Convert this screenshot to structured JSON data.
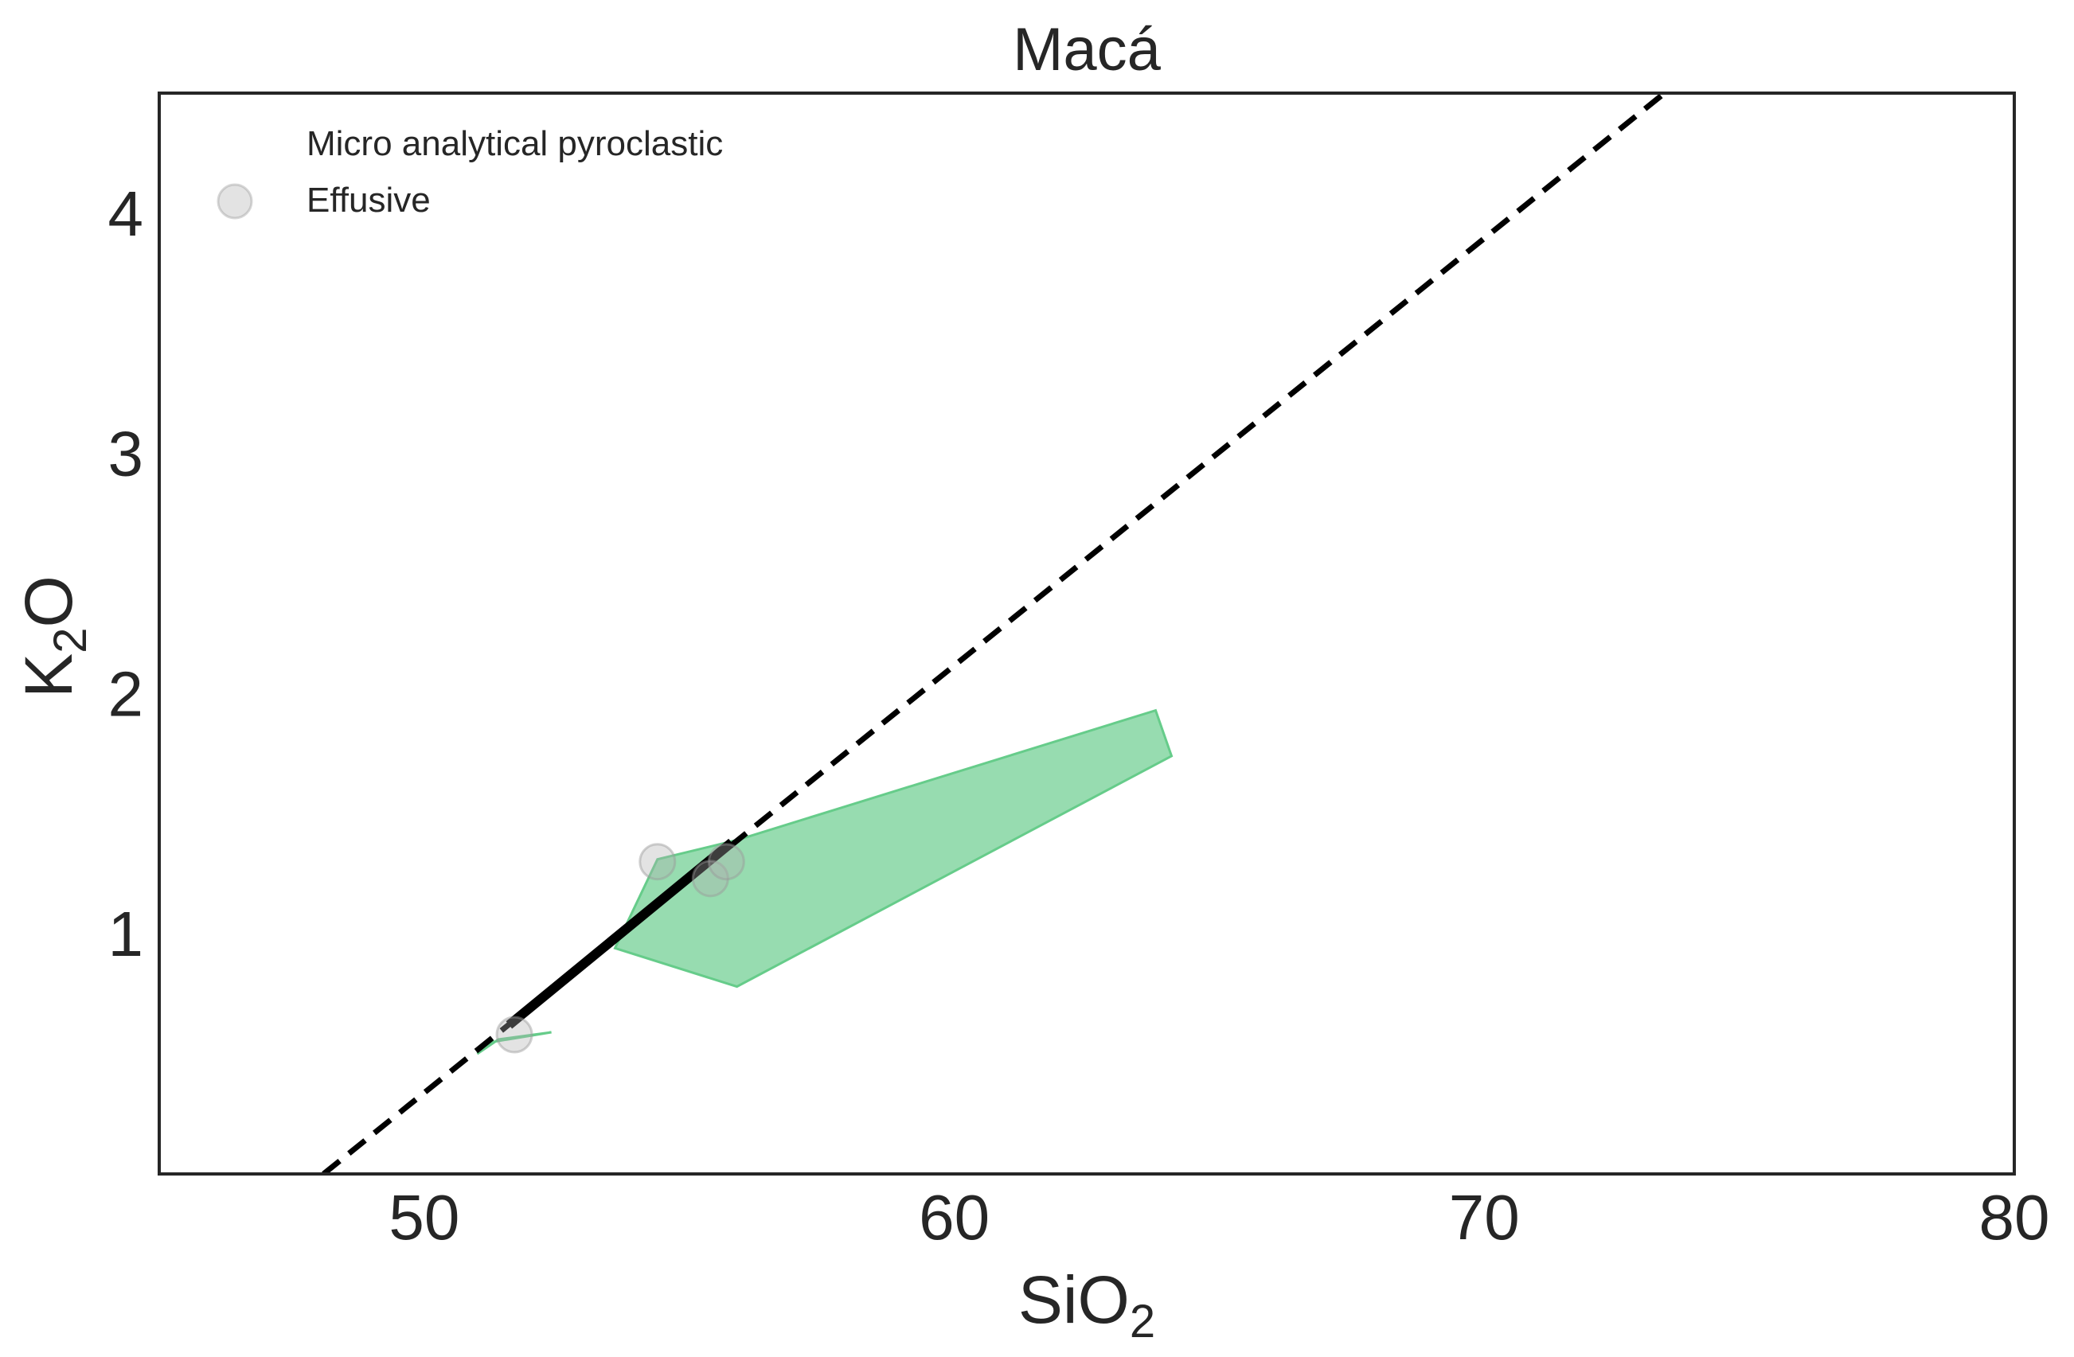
{
  "chart_data": {
    "type": "scatter",
    "title": "Macá",
    "xlabel_main": "SiO",
    "xlabel_sub": "2",
    "ylabel_main": "K",
    "ylabel_sub": "2",
    "ylabel_end": "O",
    "xlim": [
      45,
      80
    ],
    "ylim": [
      0,
      4.5
    ],
    "xticks": [
      50,
      60,
      70,
      80
    ],
    "yticks": [
      1,
      2,
      3,
      4
    ],
    "grid": false,
    "legend_placement": "top-left",
    "legend": [
      {
        "label": "Micro analytical pyroclastic",
        "marker": "none"
      },
      {
        "label": "Effusive",
        "marker": "circle"
      }
    ],
    "series": [
      {
        "name": "Effusive",
        "kind": "points",
        "color": "#b0b0b0",
        "points": [
          {
            "x": 54.4,
            "y": 1.3
          },
          {
            "x": 55.4,
            "y": 1.23
          },
          {
            "x": 55.7,
            "y": 1.3
          },
          {
            "x": 51.7,
            "y": 0.58
          }
        ]
      }
    ],
    "regions": [
      {
        "kind": "polygon",
        "fill": "#66cc8a",
        "points": [
          [
            51.0,
            0.5
          ],
          [
            51.4,
            0.56
          ],
          [
            52.4,
            0.59
          ],
          [
            51.3,
            0.55
          ]
        ]
      },
      {
        "kind": "polygon",
        "fill": "#66cc8a",
        "points": [
          [
            53.6,
            0.94
          ],
          [
            54.4,
            1.31
          ],
          [
            55.9,
            1.39
          ],
          [
            63.8,
            1.93
          ],
          [
            64.1,
            1.74
          ],
          [
            55.9,
            0.78
          ]
        ]
      }
    ],
    "lines": [
      {
        "kind": "dashed",
        "color": "#000000",
        "points": [
          [
            48.1,
            0.0
          ],
          [
            73.4,
            4.5
          ]
        ]
      },
      {
        "kind": "solid",
        "color": "#000000",
        "points": [
          [
            51.6,
            0.62
          ],
          [
            55.8,
            1.38
          ]
        ]
      }
    ]
  }
}
